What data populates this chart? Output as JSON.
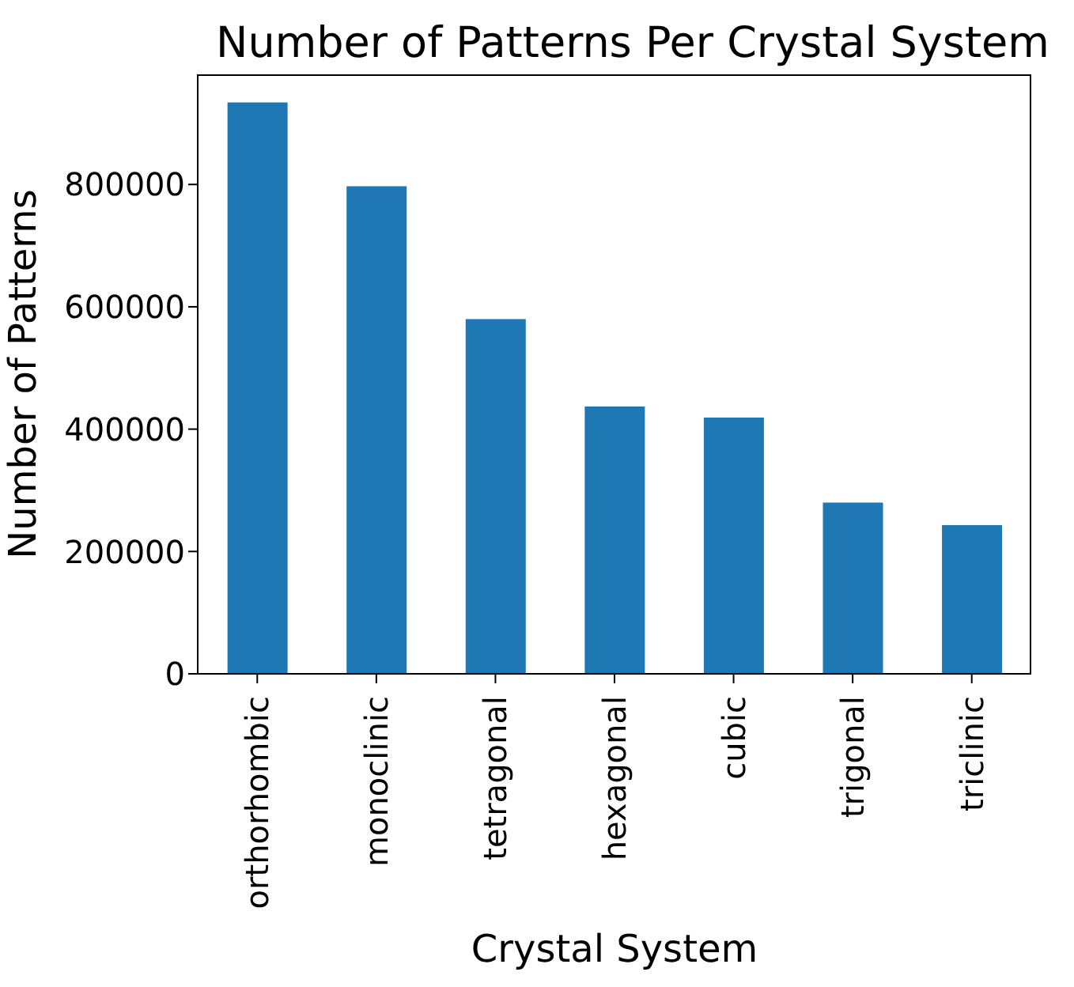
{
  "chart_data": {
    "type": "bar",
    "title": "Number of Patterns Per Crystal System",
    "xlabel": "Crystal System",
    "ylabel": "Number of Patterns",
    "categories": [
      "orthorhombic",
      "monoclinic",
      "tetragonal",
      "hexagonal",
      "cubic",
      "trigonal",
      "triclinic"
    ],
    "values": [
      934000,
      797000,
      580000,
      437000,
      419000,
      280000,
      243000
    ],
    "color": "#1f77b4",
    "ylim": [
      0,
      980000
    ],
    "yticks": [
      0,
      200000,
      400000,
      600000,
      800000
    ]
  }
}
